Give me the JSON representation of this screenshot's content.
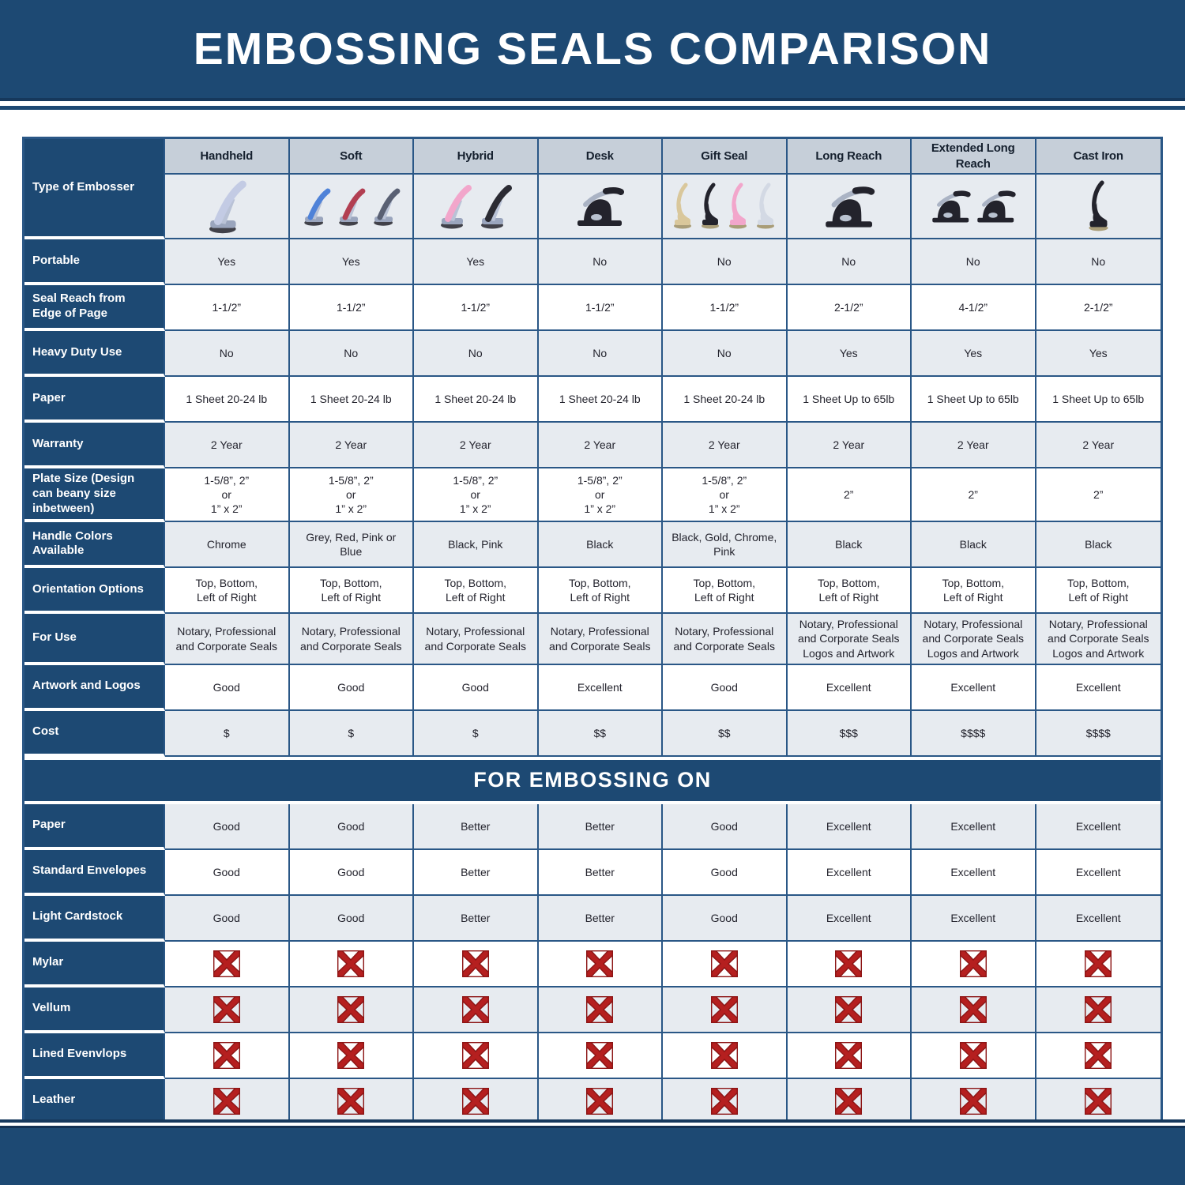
{
  "title": "EMBOSSING SEALS COMPARISON",
  "section_banner": "FOR EMBOSSING ON",
  "colors": {
    "navy": "#1d4973",
    "navy_dark": "#16385c",
    "cell_border": "#2a5786",
    "header_cell_bg": "#c6cfd9",
    "row_shade": "#e7ebf0",
    "x_mark_red": "#b51f1f"
  },
  "table": {
    "corner_label": "Type of Embosser",
    "columns": [
      {
        "label": "Handheld",
        "image": {
          "style": "handheld",
          "colors": [
            "#c3cbe4"
          ],
          "scale": 1.2
        }
      },
      {
        "label": "Soft",
        "image": {
          "style": "handheld",
          "colors": [
            "#4f82d8",
            "#b23f52",
            "#596073"
          ],
          "scale": 0.85
        }
      },
      {
        "label": "Hybrid",
        "image": {
          "style": "handheld",
          "colors": [
            "#f2a6cb",
            "#2b2b33"
          ],
          "scale": 1.0
        }
      },
      {
        "label": "Desk",
        "image": {
          "style": "desk",
          "colors": [
            "#23232c"
          ],
          "scale": 1.0
        }
      },
      {
        "label": "Gift Seal",
        "image": {
          "style": "upright",
          "colors": [
            "#d9c79b",
            "#23232c",
            "#f2a6cb",
            "#d3d9e4"
          ],
          "scale": 1.0
        }
      },
      {
        "label": "Long Reach",
        "image": {
          "style": "desk",
          "colors": [
            "#23232c"
          ],
          "scale": 1.05
        }
      },
      {
        "label": "Extended Long Reach",
        "image": {
          "style": "desk",
          "colors": [
            "#23232c",
            "#23232c"
          ],
          "scale": 0.82
        }
      },
      {
        "label": "Cast Iron",
        "image": {
          "style": "upright",
          "colors": [
            "#23232c"
          ],
          "scale": 1.1
        }
      }
    ],
    "spec_rows": [
      {
        "label": "Portable",
        "values": [
          "Yes",
          "Yes",
          "Yes",
          "No",
          "No",
          "No",
          "No",
          "No"
        ]
      },
      {
        "label": "Seal Reach from Edge of Page",
        "values": [
          "1-1/2”",
          "1-1/2”",
          "1-1/2”",
          "1-1/2”",
          "1-1/2”",
          "2-1/2”",
          "4-1/2”",
          "2-1/2”"
        ]
      },
      {
        "label": "Heavy Duty Use",
        "values": [
          "No",
          "No",
          "No",
          "No",
          "No",
          "Yes",
          "Yes",
          "Yes"
        ]
      },
      {
        "label": "Paper",
        "values": [
          "1 Sheet 20-24 lb",
          "1 Sheet 20-24 lb",
          "1 Sheet 20-24 lb",
          "1 Sheet 20-24 lb",
          "1 Sheet 20-24 lb",
          "1 Sheet Up to 65lb",
          "1 Sheet Up to 65lb",
          "1 Sheet Up to 65lb"
        ]
      },
      {
        "label": "Warranty",
        "values": [
          "2 Year",
          "2 Year",
          "2 Year",
          "2 Year",
          "2 Year",
          "2 Year",
          "2 Year",
          "2 Year"
        ]
      },
      {
        "label": "Plate Size (Design can beany size inbetween)",
        "values": [
          "1-5/8”, 2”\nor\n1” x 2”",
          "1-5/8”, 2”\nor\n1” x 2”",
          "1-5/8”, 2”\nor\n1” x 2”",
          "1-5/8”, 2”\nor\n1” x 2”",
          "1-5/8”, 2”\nor\n1” x 2”",
          "2”",
          "2”",
          "2”"
        ]
      },
      {
        "label": "Handle Colors Available",
        "values": [
          "Chrome",
          "Grey, Red, Pink or Blue",
          "Black, Pink",
          "Black",
          "Black, Gold, Chrome, Pink",
          "Black",
          "Black",
          "Black"
        ]
      },
      {
        "label": "Orientation Options",
        "values": [
          "Top, Bottom,\nLeft of Right",
          "Top, Bottom,\nLeft of Right",
          "Top, Bottom,\nLeft of Right",
          "Top, Bottom,\nLeft of Right",
          "Top, Bottom,\nLeft of Right",
          "Top, Bottom,\nLeft of Right",
          "Top, Bottom,\nLeft of Right",
          "Top, Bottom,\nLeft of Right"
        ]
      },
      {
        "label": "For Use",
        "values": [
          "Notary, Professional\nand Corporate Seals",
          "Notary, Professional\nand Corporate Seals",
          "Notary, Professional\nand Corporate Seals",
          "Notary, Professional\nand Corporate Seals",
          "Notary, Professional\nand Corporate Seals",
          "Notary, Professional\nand Corporate Seals\nLogos and Artwork",
          "Notary, Professional\nand Corporate Seals\nLogos and Artwork",
          "Notary, Professional\nand Corporate Seals\nLogos and Artwork"
        ]
      },
      {
        "label": "Artwork and Logos",
        "values": [
          "Good",
          "Good",
          "Good",
          "Excellent",
          "Good",
          "Excellent",
          "Excellent",
          "Excellent"
        ]
      },
      {
        "label": "Cost",
        "values": [
          "$",
          "$",
          "$",
          "$$",
          "$$",
          "$$$",
          "$$$$",
          "$$$$"
        ]
      }
    ],
    "embossing_rows": [
      {
        "label": "Paper",
        "values": [
          "Good",
          "Good",
          "Better",
          "Better",
          "Good",
          "Excellent",
          "Excellent",
          "Excellent"
        ]
      },
      {
        "label": "Standard Envelopes",
        "values": [
          "Good",
          "Good",
          "Better",
          "Better",
          "Good",
          "Excellent",
          "Excellent",
          "Excellent"
        ]
      },
      {
        "label": "Light Cardstock",
        "values": [
          "Good",
          "Good",
          "Better",
          "Better",
          "Good",
          "Excellent",
          "Excellent",
          "Excellent"
        ]
      },
      {
        "label": "Mylar",
        "marks": "x"
      },
      {
        "label": "Vellum",
        "marks": "x"
      },
      {
        "label": "Lined Evenvlops",
        "marks": "x"
      },
      {
        "label": "Leather",
        "marks": "x"
      }
    ]
  }
}
